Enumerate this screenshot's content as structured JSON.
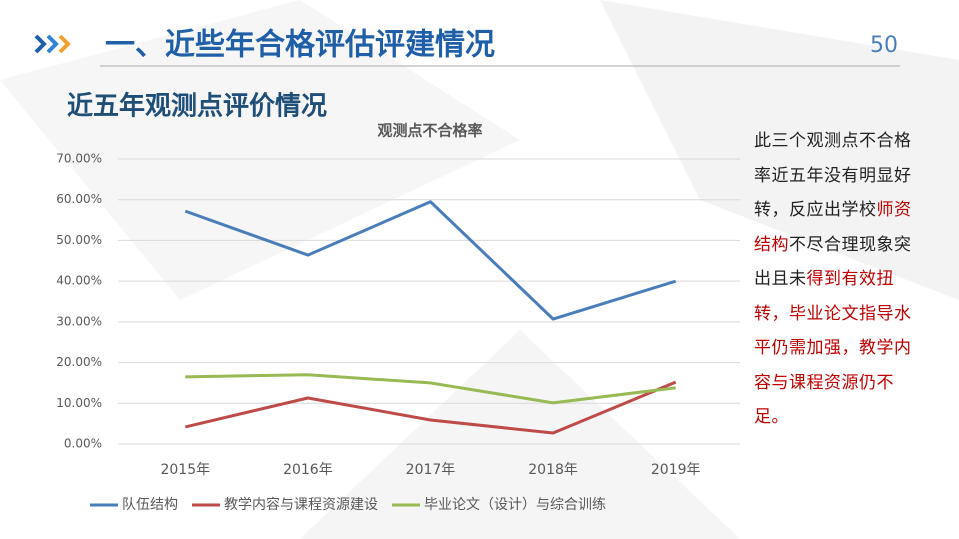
{
  "header": {
    "title": "一、近些年合格评估评建情况",
    "page_number": "50",
    "subtitle": "近五年观测点评价情况"
  },
  "chart_data": {
    "type": "line",
    "title": "观测点不合格率",
    "categories": [
      "2015年",
      "2016年",
      "2017年",
      "2018年",
      "2019年"
    ],
    "series": [
      {
        "name": "队伍结构",
        "color": "#4a7ebb",
        "values": [
          57.2,
          46.4,
          59.5,
          30.7,
          40.0
        ]
      },
      {
        "name": "教学内容与课程资源建设",
        "color": "#be4b48",
        "values": [
          4.2,
          11.3,
          5.9,
          2.7,
          15.2
        ]
      },
      {
        "name": "毕业论文（设计）与综合训练",
        "color": "#98b954",
        "values": [
          16.5,
          17.0,
          15.0,
          10.1,
          13.8
        ]
      }
    ],
    "ylim": [
      0,
      70
    ],
    "yticks": [
      {
        "value": 0,
        "label": "0.00%"
      },
      {
        "value": 10,
        "label": "10.00%"
      },
      {
        "value": 20,
        "label": "20.00%"
      },
      {
        "value": 30,
        "label": "30.00%"
      },
      {
        "value": 40,
        "label": "40.00%"
      },
      {
        "value": 50,
        "label": "50.00%"
      },
      {
        "value": 60,
        "label": "60.00%"
      },
      {
        "value": 70,
        "label": "70.00%"
      }
    ],
    "grid": true,
    "legend": "bottom"
  },
  "note": {
    "segments": [
      {
        "text": "此三个观测点不合格率近五年没有明显好转，反应出学校",
        "color": "#222222"
      },
      {
        "text": "师资结构",
        "color": "#c00000"
      },
      {
        "text": "不尽合理现象突出且未",
        "color": "#222222"
      },
      {
        "text": "得到有效扭转，毕业论文指导水平仍需加强，教学内容与课程资源仍不足。",
        "color": "#c00000"
      }
    ]
  }
}
